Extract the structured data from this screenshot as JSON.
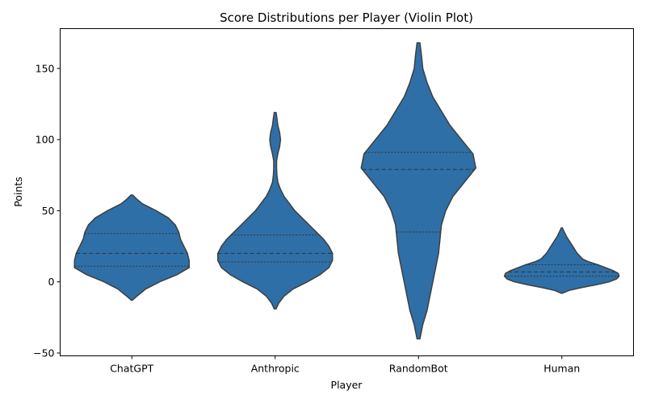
{
  "chart_data": {
    "type": "violin",
    "title": "Score Distributions per Player (Violin Plot)",
    "xlabel": "Player",
    "ylabel": "Points",
    "ylim": [
      -52,
      178
    ],
    "yticks": [
      -50,
      0,
      50,
      100,
      150
    ],
    "ytick_labels": [
      "−50",
      "0",
      "50",
      "100",
      "150"
    ],
    "grid": false,
    "legend": "none",
    "fill_color": "#2e6fa7",
    "edge_color": "#3f3f3f",
    "categories": [
      "ChatGPT",
      "Anthropic",
      "RandomBot",
      "Human"
    ],
    "violins": [
      {
        "name": "ChatGPT",
        "quartiles": [
          11,
          20,
          34
        ],
        "profile": [
          [
            -13,
            0.2
          ],
          [
            -10,
            3
          ],
          [
            -5,
            8
          ],
          [
            0,
            16
          ],
          [
            5,
            26
          ],
          [
            10,
            33
          ],
          [
            15,
            33
          ],
          [
            20,
            32
          ],
          [
            25,
            30
          ],
          [
            30,
            28
          ],
          [
            35,
            27
          ],
          [
            40,
            25
          ],
          [
            45,
            21
          ],
          [
            50,
            14
          ],
          [
            55,
            6
          ],
          [
            58,
            3
          ],
          [
            61,
            0.5
          ]
        ]
      },
      {
        "name": "Anthropic",
        "quartiles": [
          14,
          20,
          33
        ],
        "profile": [
          [
            -19,
            0.5
          ],
          [
            -15,
            2
          ],
          [
            -10,
            5
          ],
          [
            -5,
            10
          ],
          [
            0,
            18
          ],
          [
            5,
            25
          ],
          [
            10,
            30
          ],
          [
            15,
            32
          ],
          [
            20,
            32
          ],
          [
            25,
            30
          ],
          [
            30,
            27
          ],
          [
            35,
            23
          ],
          [
            40,
            19
          ],
          [
            45,
            15
          ],
          [
            50,
            11
          ],
          [
            55,
            8
          ],
          [
            60,
            5
          ],
          [
            65,
            3
          ],
          [
            70,
            1.5
          ],
          [
            75,
            1
          ],
          [
            80,
            0.8
          ],
          [
            85,
            0.8
          ],
          [
            90,
            1.5
          ],
          [
            95,
            2.5
          ],
          [
            100,
            3
          ],
          [
            105,
            2.5
          ],
          [
            110,
            1.5
          ],
          [
            115,
            1
          ],
          [
            119,
            0.5
          ]
        ]
      },
      {
        "name": "RandomBot",
        "quartiles": [
          35,
          79,
          91
        ],
        "profile": [
          [
            -40,
            0.5
          ],
          [
            -30,
            1.5
          ],
          [
            -20,
            3
          ],
          [
            -10,
            4
          ],
          [
            0,
            5
          ],
          [
            10,
            6
          ],
          [
            20,
            7
          ],
          [
            30,
            7.5
          ],
          [
            40,
            8
          ],
          [
            50,
            9.5
          ],
          [
            60,
            12
          ],
          [
            70,
            16
          ],
          [
            80,
            20
          ],
          [
            90,
            19
          ],
          [
            100,
            15
          ],
          [
            110,
            11
          ],
          [
            120,
            8
          ],
          [
            130,
            5
          ],
          [
            140,
            3
          ],
          [
            150,
            1.5
          ],
          [
            160,
            1
          ],
          [
            168,
            0.5
          ]
        ]
      },
      {
        "name": "Human",
        "quartiles": [
          4,
          7,
          12
        ],
        "profile": [
          [
            -8,
            0.5
          ],
          [
            -6,
            8
          ],
          [
            -4,
            22
          ],
          [
            -2,
            38
          ],
          [
            0,
            52
          ],
          [
            2,
            60
          ],
          [
            4,
            63
          ],
          [
            6,
            62
          ],
          [
            8,
            56
          ],
          [
            10,
            48
          ],
          [
            12,
            40
          ],
          [
            14,
            30
          ],
          [
            16,
            23
          ],
          [
            18,
            20
          ],
          [
            20,
            17
          ],
          [
            22,
            15
          ],
          [
            24,
            13
          ],
          [
            26,
            11
          ],
          [
            28,
            9
          ],
          [
            30,
            7
          ],
          [
            32,
            5
          ],
          [
            34,
            3.5
          ],
          [
            36,
            2
          ],
          [
            38,
            0.5
          ]
        ]
      }
    ]
  }
}
